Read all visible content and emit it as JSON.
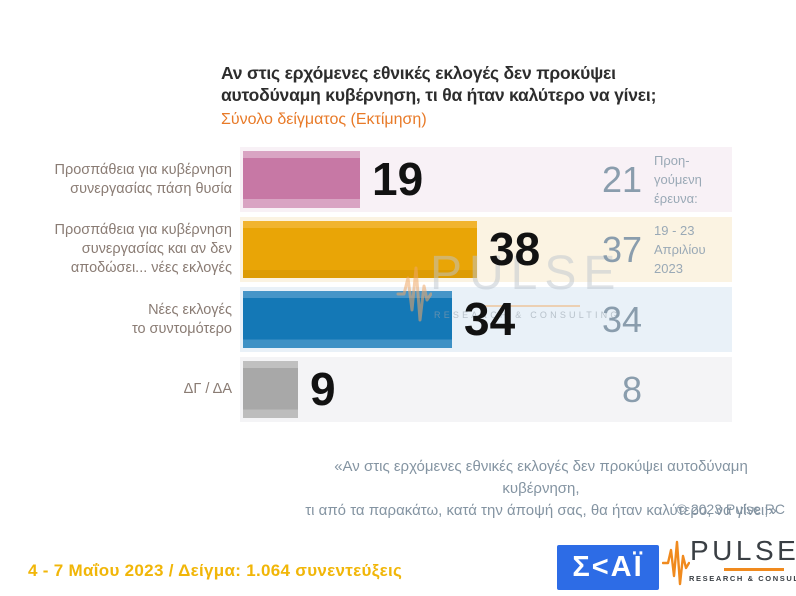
{
  "header": {
    "title": "Αν στις ερχόμενες εθνικές εκλογές δεν προκύψει\nαυτοδύναμη κυβέρνηση, τι θα ήταν καλύτερο να γίνει;",
    "subtitle": "Σύνολο δείγματος   (Εκτίμηση)"
  },
  "chart_data": {
    "type": "bar",
    "orientation": "horizontal",
    "title": "Αν στις ερχόμενες εθνικές εκλογές δεν προκύψει αυτοδύναμη κυβέρνηση, τι θα ήταν καλύτερο να γίνει;",
    "subtitle": "Σύνολο δείγματος (Εκτίμηση)",
    "categories": [
      "Προσπάθεια για κυβέρνηση συνεργασίας πάση θυσία",
      "Προσπάθεια για κυβέρνηση συνεργασίας και αν δεν αποδώσει... νέες εκλογές",
      "Νέες εκλογές το συντομότερο",
      "ΔΓ / ΔΑ"
    ],
    "series": [
      {
        "name": "Εκτίμηση",
        "values": [
          19,
          38,
          34,
          9
        ]
      },
      {
        "name": "Προηγούμενη έρευνα: 19 - 23 Απριλίου 2023",
        "values": [
          21,
          37,
          34,
          8
        ]
      }
    ],
    "bar_colors": [
      "#c778a5",
      "#e9a506",
      "#1478b6",
      "#a8a8a8"
    ],
    "row_backgrounds": [
      "#f8f1f6",
      "#fbf3e2",
      "#e9f1f8",
      "#f4f4f6"
    ],
    "xlim": [
      0,
      80
    ],
    "grid": false,
    "legend_position": "none"
  },
  "rows": [
    {
      "label": "Προσπάθεια για κυβέρνηση\nσυνεργασίας πάση θυσία",
      "value": "19",
      "prev": "21"
    },
    {
      "label": "Προσπάθεια για κυβέρνηση\nσυνεργασίας και αν δεν\nαποδώσει... νέες εκλογές",
      "value": "38",
      "prev": "37"
    },
    {
      "label": "Νέες εκλογές\nτο συντομότερο",
      "value": "34",
      "prev": "34"
    },
    {
      "label": "ΔΓ / ΔΑ",
      "value": "9",
      "prev": "8"
    }
  ],
  "prev_note": {
    "row1": "Προη-\nγούμενη\nέρευνα:",
    "row2": "19 - 23\nΑπριλίου\n2023"
  },
  "watermark": {
    "text": "PULSE",
    "sub": "RESEARCH & CONSULTING"
  },
  "footnote": {
    "quote": "«Αν στις ερχόμενες εθνικές εκλογές δεν προκύψει αυτοδύναμη κυβέρνηση,\nτι από τα παρακάτω, κατά την άποψή σας, θα ήταν καλύτερο, να γίνει;»",
    "copyright": "© 2023 Pulse RC"
  },
  "footer": {
    "info": "4 - 7  Μαΐου  2023  /  Δείγμα:  1.064 συνεντεύξεις",
    "skai_logo": "Σ<ΑΪ",
    "pulse_logo": "PULSE",
    "pulse_sub": "RESEARCH & CONSULTING"
  }
}
